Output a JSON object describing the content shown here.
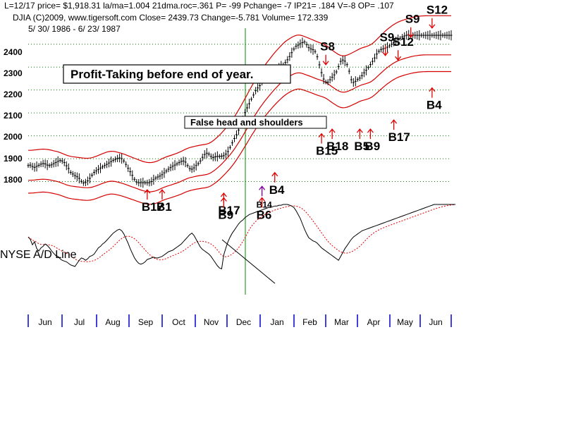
{
  "header": {
    "line1": "L=12/17  price= $1,918.31  la/ma=1.004 21dma.roc=.361 P= -99 Pchange= -7 IP21= .184 V=-8 OP= .107",
    "line2": "DJIA    (C)2009,  www.tigersoft.com     Close=  2439.73   Change=-5.781  Volume= 172.339",
    "line3": "5/ 30/ 1986 - 6/ 23/ 1987"
  },
  "annotations": {
    "profit_taking": "Profit-Taking before end of year.",
    "false_hs": "False head  and shoulders",
    "ad_line": "NYSE A/D Line"
  },
  "colors": {
    "bands": "#d40000",
    "price_bars": "#000000",
    "ad_line": "#000000",
    "ad_ma": "#e00000",
    "grid": "#008000",
    "vline": "#009000",
    "signal_arrow": "#e00000",
    "signal_arrow_special": "#8000a0",
    "month_tick": "#0000cc"
  },
  "chart_data": {
    "type": "line",
    "title": "DJIA",
    "ylim": [
      1700,
      2470
    ],
    "yticks": [
      "2400",
      "2300",
      "2200",
      "2100",
      "2000",
      "1900",
      "1800"
    ],
    "grid": true,
    "months": [
      "Jun",
      "Jul",
      "Aug",
      "Sep",
      "Oct",
      "Nov",
      "Dec",
      "Jan",
      "Feb",
      "Mar",
      "Apr",
      "May",
      "Jun"
    ],
    "series": [
      {
        "key": "price",
        "name": "DJIA",
        "x": [
          0,
          1,
          2,
          3,
          4,
          5,
          6,
          7,
          8,
          9,
          10,
          11,
          12,
          13,
          14,
          15,
          16,
          17,
          18,
          19,
          20,
          21,
          22,
          23,
          24,
          25,
          26,
          27,
          28,
          29,
          30,
          31,
          32,
          33,
          34,
          35,
          36,
          37,
          38,
          39,
          40,
          41,
          42,
          43,
          44,
          45,
          46,
          47,
          48,
          49,
          50,
          51,
          52,
          53,
          54,
          55,
          56,
          57,
          58,
          59,
          60,
          61,
          62,
          63,
          64,
          65,
          66,
          67,
          68,
          69,
          70,
          71,
          72,
          73,
          74,
          75,
          76,
          77,
          78,
          79,
          80,
          81,
          82,
          83,
          84,
          85,
          86,
          87,
          88,
          89,
          90,
          91,
          92,
          93,
          94,
          95,
          96,
          97,
          98,
          99,
          100,
          101,
          102,
          103,
          104,
          105,
          106,
          107,
          108,
          109,
          110,
          111,
          112,
          113,
          114,
          115,
          116,
          117,
          118,
          119,
          120,
          121,
          122,
          123,
          124,
          125,
          126,
          127,
          128,
          129,
          130,
          131,
          132,
          133,
          134,
          135,
          136,
          137,
          138,
          139,
          140,
          141,
          142,
          143,
          144,
          145,
          146,
          147,
          148,
          149,
          150,
          151,
          152,
          153,
          154,
          155,
          156,
          157,
          158,
          159,
          160,
          161,
          162,
          163,
          164,
          165,
          166,
          167,
          168,
          169,
          170,
          171,
          172,
          173,
          174,
          175,
          176,
          177,
          178,
          179,
          180,
          181,
          182,
          183,
          184,
          185,
          186,
          187,
          188,
          189,
          190,
          191,
          192,
          193,
          194,
          195,
          196,
          197,
          198,
          199
        ],
        "values": [
          1870,
          1872,
          1866,
          1862,
          1866,
          1871,
          1876,
          1879,
          1877,
          1872,
          1870,
          1873,
          1878,
          1883,
          1888,
          1892,
          1890,
          1883,
          1869,
          1857,
          1840,
          1833,
          1826,
          1821,
          1814,
          1801,
          1794,
          1796,
          1803,
          1814,
          1828,
          1840,
          1847,
          1853,
          1859,
          1864,
          1870,
          1875,
          1881,
          1887,
          1893,
          1897,
          1901,
          1903,
          1900,
          1890,
          1875,
          1858,
          1843,
          1827,
          1810,
          1798,
          1795,
          1795,
          1795,
          1795,
          1795,
          1795,
          1800,
          1808,
          1815,
          1820,
          1824,
          1830,
          1838,
          1846,
          1854,
          1861,
          1867,
          1872,
          1877,
          1883,
          1888,
          1890,
          1885,
          1870,
          1857,
          1854,
          1860,
          1870,
          1878,
          1890,
          1906,
          1918,
          1924,
          1920,
          1910,
          1905,
          1908,
          1910,
          1910,
          1911,
          1913,
          1920,
          1931,
          1949,
          1969,
          1988,
          2005,
          2025,
          2049,
          2075,
          2101,
          2122,
          2140,
          2160,
          2178,
          2197,
          2209,
          2219,
          2230,
          2242,
          2255,
          2266,
          2273,
          2273,
          2276,
          2289,
          2299,
          2305,
          2310,
          2320,
          2332,
          2346,
          2363,
          2379,
          2391,
          2396,
          2402,
          2407,
          2410,
          2398,
          2385,
          2380,
          2376,
          2368,
          2345,
          2310,
          2276,
          2248,
          2235,
          2234,
          2245,
          2256,
          2266,
          2279,
          2302,
          2325,
          2331,
          2326,
          2311,
          2282,
          2245,
          2233,
          2238,
          2246,
          2252,
          2263,
          2275,
          2286,
          2298,
          2311,
          2325,
          2340,
          2357,
          2369,
          2377,
          2380,
          2383,
          2387,
          2393,
          2400,
          2407,
          2414,
          2420,
          2426,
          2432,
          2436,
          2439,
          2440,
          2439,
          2439,
          2439,
          2439,
          2439,
          2439,
          2439,
          2439,
          2439,
          2439,
          2439,
          2439,
          2439,
          2439,
          2439,
          2439,
          2439,
          2439,
          2439,
          2439
        ]
      },
      {
        "key": "upper_band",
        "name": "upper band",
        "x": [],
        "values": []
      },
      {
        "key": "lower_band",
        "name": "lower band",
        "x": [],
        "values": []
      },
      {
        "key": "outer_band",
        "name": "outer band",
        "x": [],
        "values": []
      }
    ],
    "ad_line": {
      "name": "NYSE A/D Line",
      "values": [
        0.58,
        0.55,
        0.48,
        0.52,
        0.43,
        0.4,
        0.44,
        0.46,
        0.49,
        0.47,
        0.44,
        0.4,
        0.37,
        0.34,
        0.33,
        0.3,
        0.28,
        0.27,
        0.26,
        0.24,
        0.22,
        0.21,
        0.2,
        0.24,
        0.28,
        0.31,
        0.3,
        0.28,
        0.3,
        0.33,
        0.34,
        0.36,
        0.4,
        0.44,
        0.46,
        0.49,
        0.51,
        0.54,
        0.57,
        0.6,
        0.63,
        0.65,
        0.67,
        0.68,
        0.66,
        0.62,
        0.56,
        0.5,
        0.43,
        0.37,
        0.31,
        0.27,
        0.24,
        0.23,
        0.24,
        0.26,
        0.29,
        0.3,
        0.31,
        0.32,
        0.31,
        0.31,
        0.32,
        0.33,
        0.35,
        0.37,
        0.39,
        0.4,
        0.41,
        0.43,
        0.45,
        0.47,
        0.49,
        0.52,
        0.55,
        0.58,
        0.61,
        0.63,
        0.6,
        0.55,
        0.5,
        0.45,
        0.42,
        0.4,
        0.38,
        0.36,
        0.33,
        0.29,
        0.25,
        0.21,
        0.18,
        0.17,
        0.35,
        0.44,
        0.52,
        0.58,
        0.63,
        0.67,
        0.71,
        0.75,
        0.78,
        0.8,
        0.83,
        0.85,
        0.87,
        0.88,
        0.89,
        0.9,
        0.91,
        0.92,
        0.93,
        0.94,
        0.95,
        0.96,
        0.96,
        0.97,
        0.98,
        0.98,
        0.99,
        0.99,
        1.0,
        1.0,
        1.0,
        0.99,
        0.98,
        0.96,
        0.92,
        0.87,
        0.82,
        0.75,
        0.68,
        0.62,
        0.57,
        0.55,
        0.53,
        0.52,
        0.5,
        0.47,
        0.44,
        0.42,
        0.4,
        0.38,
        0.36,
        0.34,
        0.32,
        0.3,
        0.28,
        0.33,
        0.38,
        0.43,
        0.47,
        0.51,
        0.55,
        0.58,
        0.6,
        0.62,
        0.64,
        0.66,
        0.67,
        0.68,
        0.69,
        0.7,
        0.71,
        0.72,
        0.73,
        0.74,
        0.75,
        0.76,
        0.77,
        0.78,
        0.79,
        0.8,
        0.81,
        0.82,
        0.83,
        0.84,
        0.85,
        0.86,
        0.87,
        0.88,
        0.89,
        0.9,
        0.91,
        0.92,
        0.93,
        0.94,
        0.95,
        0.96,
        0.97,
        0.98,
        0.99,
        1.0,
        1.0,
        1.0,
        1.0,
        1.0,
        1.0,
        1.0,
        1.0,
        1.0,
        1.0,
        1.0
      ]
    },
    "signals": [
      {
        "label": "S8",
        "type": "sell",
        "x": 140,
        "price": 2280
      },
      {
        "label": "S9",
        "type": "sell",
        "x": 168,
        "price": 2320
      },
      {
        "label": "S12",
        "type": "sell",
        "x": 174,
        "price": 2300
      },
      {
        "label": "S9",
        "type": "sell",
        "x": 180,
        "price": 2400
      },
      {
        "label": "S12",
        "type": "sell",
        "x": 190,
        "price": 2440
      },
      {
        "label": "B17",
        "type": "buy",
        "x": 56,
        "price": 1795
      },
      {
        "label": "B1",
        "type": "buy",
        "x": 63,
        "price": 1795
      },
      {
        "label": "B17",
        "type": "buy",
        "x": 92,
        "price": 1780
      },
      {
        "label": "B9",
        "type": "buy",
        "x": 92,
        "price": 1760
      },
      {
        "label": "B14",
        "type": "buy",
        "x": 110,
        "price": 1810
      },
      {
        "label": "B6",
        "type": "buy",
        "x": 110,
        "price": 1760
      },
      {
        "label": "B4",
        "type": "buy",
        "x": 116,
        "price": 1870
      },
      {
        "label": "B15",
        "type": "buy",
        "x": 138,
        "price": 2040
      },
      {
        "label": "B18",
        "type": "buy",
        "x": 143,
        "price": 2060
      },
      {
        "label": "B5",
        "type": "buy",
        "x": 156,
        "price": 2060
      },
      {
        "label": "B9",
        "type": "buy",
        "x": 161,
        "price": 2060
      },
      {
        "label": "B17",
        "type": "buy",
        "x": 172,
        "price": 2100
      },
      {
        "label": "B4",
        "type": "buy",
        "x": 190,
        "price": 2240
      }
    ]
  }
}
